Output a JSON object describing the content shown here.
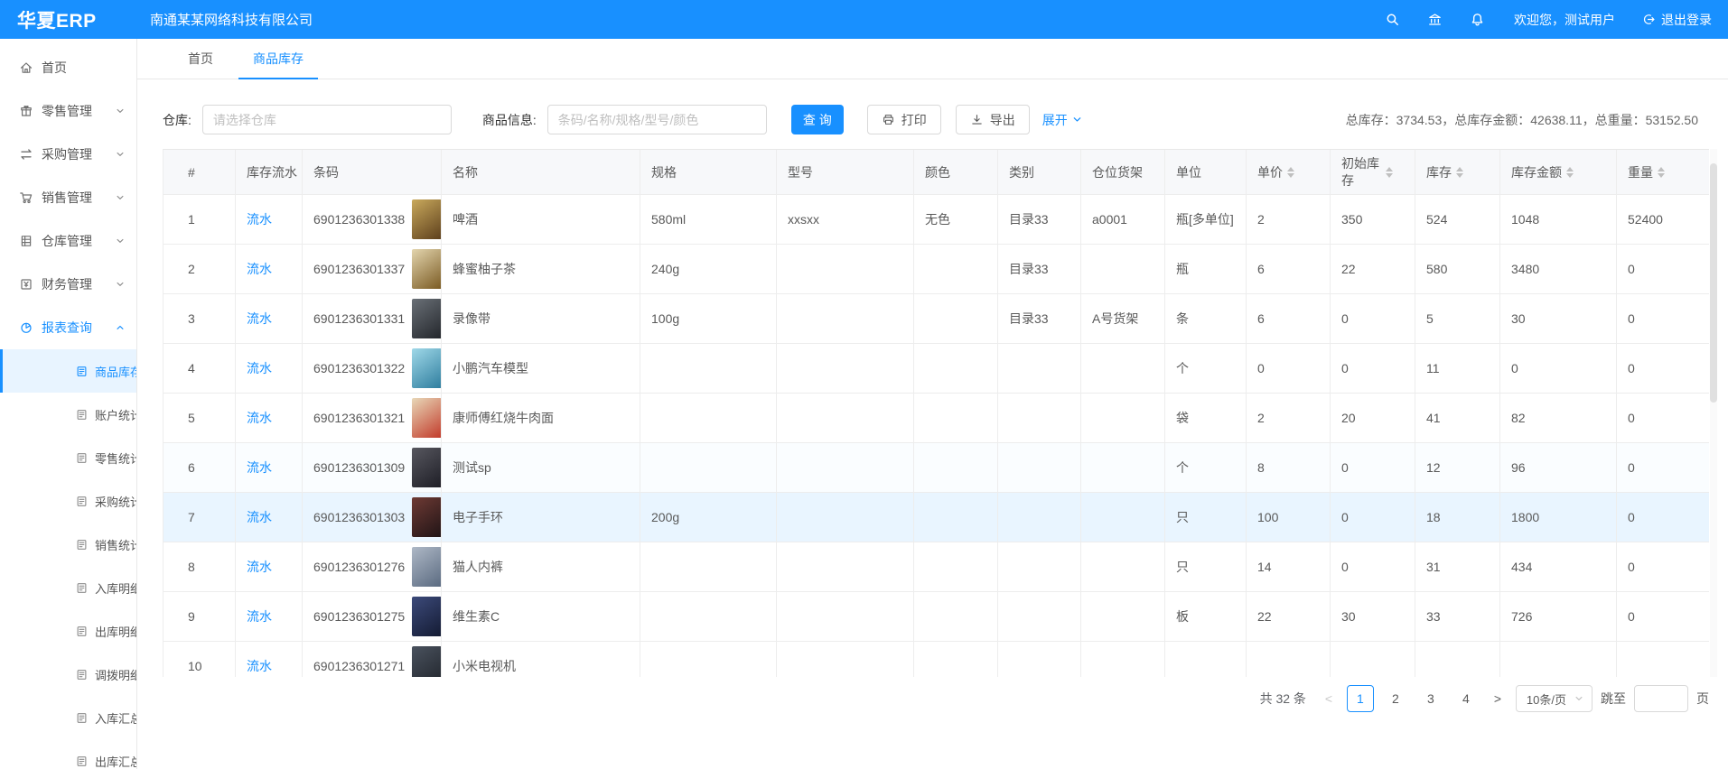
{
  "app": {
    "logo": "华夏ERP",
    "company": "南通某某网络科技有限公司",
    "welcome": "欢迎您，测试用户",
    "logout_label": "退出登录",
    "header_icons": [
      "search-icon",
      "bank-icon",
      "bell-icon",
      "logout-icon"
    ]
  },
  "colors": {
    "primary": "#1890ff",
    "header_bg": "#1890ff",
    "active_submenu_bg": "#e8f4ff",
    "highlight_row_bg": "#e9f5ff",
    "table_header_bg": "#f7f8fa"
  },
  "tabs": [
    {
      "label": "首页",
      "active": false
    },
    {
      "label": "商品库存",
      "active": true
    }
  ],
  "sidebar": {
    "items": [
      {
        "label": "首页",
        "icon": "home-icon",
        "chevron": null,
        "expanded": false
      },
      {
        "label": "零售管理",
        "icon": "retail-icon",
        "chevron": "down",
        "expanded": false
      },
      {
        "label": "采购管理",
        "icon": "purchase-icon",
        "chevron": "down",
        "expanded": false
      },
      {
        "label": "销售管理",
        "icon": "sales-cart-icon",
        "chevron": "down",
        "expanded": false
      },
      {
        "label": "仓库管理",
        "icon": "warehouse-icon",
        "chevron": "down",
        "expanded": false
      },
      {
        "label": "财务管理",
        "icon": "finance-icon",
        "chevron": "down",
        "expanded": false
      },
      {
        "label": "报表查询",
        "icon": "pie-chart-icon",
        "chevron": "up",
        "expanded": true
      }
    ],
    "sub_items": [
      {
        "label": "商品库存",
        "icon": "report-doc-icon",
        "active": true
      },
      {
        "label": "账户统计",
        "icon": "report-doc-icon",
        "active": false
      },
      {
        "label": "零售统计",
        "icon": "report-doc-icon",
        "active": false
      },
      {
        "label": "采购统计",
        "icon": "report-doc-icon",
        "active": false
      },
      {
        "label": "销售统计",
        "icon": "report-doc-icon",
        "active": false
      },
      {
        "label": "入库明细",
        "icon": "report-doc-icon",
        "active": false
      },
      {
        "label": "出库明细",
        "icon": "report-doc-icon",
        "active": false
      },
      {
        "label": "调拨明细",
        "icon": "report-doc-icon",
        "active": false
      },
      {
        "label": "入库汇总",
        "icon": "report-doc-icon",
        "active": false
      },
      {
        "label": "出库汇总",
        "icon": "report-doc-icon",
        "active": false
      }
    ]
  },
  "filters": {
    "warehouse_label": "仓库:",
    "warehouse_placeholder": "请选择仓库",
    "warehouse_value": "",
    "product_label": "商品信息:",
    "product_placeholder": "条码/名称/规格/型号/颜色",
    "product_value": "",
    "search_button": "查 询",
    "print_button": "打印",
    "export_button": "导出",
    "expand_label": "展开"
  },
  "summary": {
    "text": "总库存：3734.53，总库存金额：42638.11，总重量：53152.50"
  },
  "table": {
    "flow_link_label": "流水",
    "columns": [
      {
        "label": "#",
        "sortable": false
      },
      {
        "label": "库存流水",
        "sortable": false
      },
      {
        "label": "条码",
        "sortable": false
      },
      {
        "label": "名称",
        "sortable": false
      },
      {
        "label": "规格",
        "sortable": false
      },
      {
        "label": "型号",
        "sortable": false
      },
      {
        "label": "颜色",
        "sortable": false
      },
      {
        "label": "类别",
        "sortable": false
      },
      {
        "label": "仓位货架",
        "sortable": false
      },
      {
        "label": "单位",
        "sortable": false
      },
      {
        "label": "单价",
        "sortable": true
      },
      {
        "label": "初始库存",
        "sortable": true
      },
      {
        "label": "库存",
        "sortable": true
      },
      {
        "label": "库存金额",
        "sortable": true
      },
      {
        "label": "重量",
        "sortable": true
      }
    ],
    "rows": [
      {
        "num": "1",
        "barcode": "6901236301338",
        "name": "啤酒",
        "spec": "580ml",
        "model": "xxsxx",
        "color": "无色",
        "category": "目录33",
        "shelf": "a0001",
        "unit": "瓶[多单位]",
        "price": "2",
        "initial": "350",
        "stock": "524",
        "amount": "1048",
        "weight": "52400",
        "thumb": [
          "#c9a95c",
          "#5d3f1c"
        ],
        "highlight": false,
        "tint": false
      },
      {
        "num": "2",
        "barcode": "6901236301337",
        "name": "蜂蜜柚子茶",
        "spec": "240g",
        "model": "",
        "color": "",
        "category": "目录33",
        "shelf": "",
        "unit": "瓶",
        "price": "6",
        "initial": "22",
        "stock": "580",
        "amount": "3480",
        "weight": "0",
        "thumb": [
          "#e3d5ae",
          "#7a5a22"
        ],
        "highlight": false,
        "tint": false
      },
      {
        "num": "3",
        "barcode": "6901236301331",
        "name": "录像带",
        "spec": "100g",
        "model": "",
        "color": "",
        "category": "目录33",
        "shelf": "A号货架",
        "unit": "条",
        "price": "6",
        "initial": "0",
        "stock": "5",
        "amount": "30",
        "weight": "0",
        "thumb": [
          "#6a7077",
          "#23262b"
        ],
        "highlight": false,
        "tint": false
      },
      {
        "num": "4",
        "barcode": "6901236301322",
        "name": "小鹏汽车模型",
        "spec": "",
        "model": "",
        "color": "",
        "category": "",
        "shelf": "",
        "unit": "个",
        "price": "0",
        "initial": "0",
        "stock": "11",
        "amount": "0",
        "weight": "0",
        "thumb": [
          "#9fd8e8",
          "#2e7d9e"
        ],
        "highlight": false,
        "tint": false
      },
      {
        "num": "5",
        "barcode": "6901236301321",
        "name": "康师傅红烧牛肉面",
        "spec": "",
        "model": "",
        "color": "",
        "category": "",
        "shelf": "",
        "unit": "袋",
        "price": "2",
        "initial": "20",
        "stock": "41",
        "amount": "82",
        "weight": "0",
        "thumb": [
          "#e8d8b8",
          "#c23a2a"
        ],
        "highlight": false,
        "tint": false
      },
      {
        "num": "6",
        "barcode": "6901236301309",
        "name": "测试sp",
        "spec": "",
        "model": "",
        "color": "",
        "category": "",
        "shelf": "",
        "unit": "个",
        "price": "8",
        "initial": "0",
        "stock": "12",
        "amount": "96",
        "weight": "0",
        "thumb": [
          "#57575f",
          "#1e1e26"
        ],
        "highlight": false,
        "tint": true
      },
      {
        "num": "7",
        "barcode": "6901236301303",
        "name": "电子手环",
        "spec": "200g",
        "model": "",
        "color": "",
        "category": "",
        "shelf": "",
        "unit": "只",
        "price": "100",
        "initial": "0",
        "stock": "18",
        "amount": "1800",
        "weight": "0",
        "thumb": [
          "#6e3a34",
          "#201416"
        ],
        "highlight": true,
        "tint": false
      },
      {
        "num": "8",
        "barcode": "6901236301276",
        "name": "猫人内裤",
        "spec": "",
        "model": "",
        "color": "",
        "category": "",
        "shelf": "",
        "unit": "只",
        "price": "14",
        "initial": "0",
        "stock": "31",
        "amount": "434",
        "weight": "0",
        "thumb": [
          "#aeb8c6",
          "#5a6a80"
        ],
        "highlight": false,
        "tint": false
      },
      {
        "num": "9",
        "barcode": "6901236301275",
        "name": "维生素C",
        "spec": "",
        "model": "",
        "color": "",
        "category": "",
        "shelf": "",
        "unit": "板",
        "price": "22",
        "initial": "30",
        "stock": "33",
        "amount": "726",
        "weight": "0",
        "thumb": [
          "#3c4a7a",
          "#141b33"
        ],
        "highlight": false,
        "tint": false
      },
      {
        "num": "10",
        "barcode": "6901236301271",
        "name": "小米电视机",
        "spec": "",
        "model": "",
        "color": "",
        "category": "",
        "shelf": "",
        "unit": "",
        "price": "",
        "initial": "",
        "stock": "",
        "amount": "",
        "weight": "",
        "thumb": [
          "#4a525e",
          "#20242b"
        ],
        "highlight": false,
        "tint": false
      }
    ]
  },
  "pagination": {
    "total_text": "共 32 条",
    "prev_icon": "chevron-left-icon",
    "next_icon": "chevron-right-icon",
    "pages": [
      "1",
      "2",
      "3",
      "4"
    ],
    "current": "1",
    "page_size": "10条/页",
    "jump_label": "跳至",
    "jump_value": "",
    "page_label": "页"
  }
}
